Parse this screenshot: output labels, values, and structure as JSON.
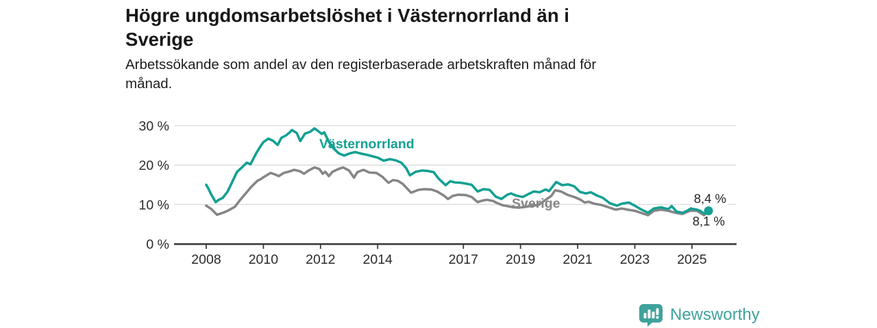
{
  "header": {
    "title_lines": [
      "Högre ungdomsarbetslöshet i Västernorrland än i",
      "Sverige"
    ],
    "subtitle_lines": [
      "Arbetssökande som andel av den registerbaserade arbetskraften månad för",
      "månad."
    ]
  },
  "colors": {
    "vasternorrland": "#14a093",
    "sverige": "#868686",
    "grid": "#d9d9d9",
    "axis": "#3a3a3a",
    "text": "#2b2b2b",
    "brand_teal": "#3fa29c"
  },
  "chart_data": {
    "type": "line",
    "title": "Högre ungdomsarbetslöshet i Västernorrland än i Sverige",
    "subtitle": "Arbetssökande som andel av den registerbaserade arbetskraften månad för månad.",
    "grid": "horizontal",
    "legend_position": "inline-labels",
    "y_axis": {
      "unit": "%",
      "range": [
        0,
        30
      ],
      "ticks": [
        {
          "value": 30,
          "label": "30 %"
        },
        {
          "value": 20,
          "label": "20 %"
        },
        {
          "value": 10,
          "label": "10 %"
        },
        {
          "value": 0,
          "label": "0 %"
        }
      ]
    },
    "x_axis": {
      "range": [
        2008,
        2025.6
      ],
      "ticks": [
        {
          "value": 2008,
          "label": "2008"
        },
        {
          "value": 2010,
          "label": "2010"
        },
        {
          "value": 2012,
          "label": "2012"
        },
        {
          "value": 2014,
          "label": "2014"
        },
        {
          "value": 2017,
          "label": "2017"
        },
        {
          "value": 2019,
          "label": "2019"
        },
        {
          "value": 2021,
          "label": "2021"
        },
        {
          "value": 2023,
          "label": "2023"
        },
        {
          "value": 2025,
          "label": "2025"
        }
      ]
    },
    "series": [
      {
        "name": "Sverige",
        "color": "#868686",
        "end_label": "8,1 %",
        "end_dot": false,
        "points": [
          [
            2008.0,
            9.7
          ],
          [
            2008.17,
            8.9
          ],
          [
            2008.38,
            7.4
          ],
          [
            2008.58,
            7.9
          ],
          [
            2008.75,
            8.4
          ],
          [
            2009.0,
            9.4
          ],
          [
            2009.17,
            11.0
          ],
          [
            2009.38,
            12.8
          ],
          [
            2009.58,
            14.5
          ],
          [
            2009.79,
            16.0
          ],
          [
            2009.92,
            16.5
          ],
          [
            2010.0,
            16.9
          ],
          [
            2010.25,
            18.0
          ],
          [
            2010.42,
            17.6
          ],
          [
            2010.54,
            17.2
          ],
          [
            2010.71,
            18.0
          ],
          [
            2010.92,
            18.4
          ],
          [
            2011.08,
            18.8
          ],
          [
            2011.29,
            18.4
          ],
          [
            2011.42,
            17.8
          ],
          [
            2011.58,
            18.6
          ],
          [
            2011.79,
            19.4
          ],
          [
            2011.96,
            19.0
          ],
          [
            2012.08,
            17.8
          ],
          [
            2012.17,
            18.3
          ],
          [
            2012.29,
            17.2
          ],
          [
            2012.42,
            18.3
          ],
          [
            2012.63,
            19.0
          ],
          [
            2012.79,
            19.4
          ],
          [
            2013.0,
            18.6
          ],
          [
            2013.17,
            16.8
          ],
          [
            2013.29,
            18.2
          ],
          [
            2013.5,
            18.8
          ],
          [
            2013.71,
            18.1
          ],
          [
            2013.96,
            18.0
          ],
          [
            2014.17,
            17.0
          ],
          [
            2014.38,
            15.5
          ],
          [
            2014.54,
            16.2
          ],
          [
            2014.71,
            16.0
          ],
          [
            2014.88,
            15.2
          ],
          [
            2015.17,
            13.0
          ],
          [
            2015.42,
            13.7
          ],
          [
            2015.63,
            13.9
          ],
          [
            2015.88,
            13.8
          ],
          [
            2016.08,
            13.3
          ],
          [
            2016.33,
            12.2
          ],
          [
            2016.46,
            11.4
          ],
          [
            2016.63,
            12.2
          ],
          [
            2016.83,
            12.5
          ],
          [
            2017.08,
            12.4
          ],
          [
            2017.29,
            11.9
          ],
          [
            2017.5,
            10.6
          ],
          [
            2017.67,
            11.0
          ],
          [
            2017.83,
            11.2
          ],
          [
            2018.04,
            10.9
          ],
          [
            2018.17,
            10.4
          ],
          [
            2018.38,
            9.8
          ],
          [
            2018.54,
            9.6
          ],
          [
            2018.75,
            9.3
          ],
          [
            2018.96,
            9.2
          ],
          [
            2019.17,
            9.4
          ],
          [
            2019.42,
            9.7
          ],
          [
            2019.63,
            9.9
          ],
          [
            2019.88,
            11.2
          ],
          [
            2020.08,
            12.2
          ],
          [
            2020.21,
            13.6
          ],
          [
            2020.42,
            13.3
          ],
          [
            2020.63,
            12.5
          ],
          [
            2020.88,
            11.9
          ],
          [
            2021.08,
            11.3
          ],
          [
            2021.25,
            10.5
          ],
          [
            2021.38,
            10.7
          ],
          [
            2021.58,
            10.2
          ],
          [
            2021.83,
            9.9
          ],
          [
            2022.08,
            9.3
          ],
          [
            2022.33,
            8.7
          ],
          [
            2022.54,
            9.0
          ],
          [
            2022.75,
            8.7
          ],
          [
            2023.0,
            8.4
          ],
          [
            2023.21,
            7.9
          ],
          [
            2023.46,
            7.3
          ],
          [
            2023.67,
            8.4
          ],
          [
            2023.92,
            8.7
          ],
          [
            2024.17,
            8.4
          ],
          [
            2024.42,
            7.9
          ],
          [
            2024.67,
            7.6
          ],
          [
            2024.92,
            8.4
          ],
          [
            2025.17,
            8.4
          ],
          [
            2025.42,
            7.3
          ],
          [
            2025.58,
            8.1
          ]
        ]
      },
      {
        "name": "Västernorrland",
        "color": "#14a093",
        "end_label": "8,4 %",
        "end_dot": true,
        "points": [
          [
            2008.0,
            15.0
          ],
          [
            2008.08,
            14.0
          ],
          [
            2008.17,
            12.6
          ],
          [
            2008.33,
            10.6
          ],
          [
            2008.42,
            11.1
          ],
          [
            2008.58,
            11.7
          ],
          [
            2008.75,
            13.3
          ],
          [
            2008.92,
            15.9
          ],
          [
            2009.08,
            18.3
          ],
          [
            2009.25,
            19.4
          ],
          [
            2009.42,
            20.6
          ],
          [
            2009.55,
            20.2
          ],
          [
            2009.75,
            23.0
          ],
          [
            2009.92,
            25.0
          ],
          [
            2010.0,
            25.8
          ],
          [
            2010.17,
            26.7
          ],
          [
            2010.33,
            26.2
          ],
          [
            2010.5,
            25.1
          ],
          [
            2010.63,
            26.9
          ],
          [
            2010.79,
            27.5
          ],
          [
            2010.92,
            28.3
          ],
          [
            2011.0,
            28.9
          ],
          [
            2011.17,
            28.1
          ],
          [
            2011.29,
            26.1
          ],
          [
            2011.46,
            28.0
          ],
          [
            2011.63,
            28.4
          ],
          [
            2011.79,
            29.3
          ],
          [
            2011.92,
            28.6
          ],
          [
            2012.04,
            27.9
          ],
          [
            2012.13,
            28.3
          ],
          [
            2012.29,
            25.9
          ],
          [
            2012.46,
            24.2
          ],
          [
            2012.63,
            23.0
          ],
          [
            2012.83,
            22.4
          ],
          [
            2013.0,
            22.9
          ],
          [
            2013.21,
            23.3
          ],
          [
            2013.42,
            22.9
          ],
          [
            2013.63,
            22.6
          ],
          [
            2013.83,
            22.2
          ],
          [
            2014.0,
            21.9
          ],
          [
            2014.21,
            21.1
          ],
          [
            2014.42,
            21.5
          ],
          [
            2014.63,
            21.2
          ],
          [
            2014.83,
            20.6
          ],
          [
            2015.0,
            19.2
          ],
          [
            2015.13,
            17.4
          ],
          [
            2015.33,
            18.3
          ],
          [
            2015.54,
            18.6
          ],
          [
            2015.75,
            18.5
          ],
          [
            2015.96,
            18.2
          ],
          [
            2016.13,
            16.6
          ],
          [
            2016.38,
            14.9
          ],
          [
            2016.54,
            15.9
          ],
          [
            2016.71,
            15.6
          ],
          [
            2016.92,
            15.5
          ],
          [
            2017.08,
            15.3
          ],
          [
            2017.29,
            15.0
          ],
          [
            2017.5,
            13.3
          ],
          [
            2017.71,
            13.9
          ],
          [
            2017.92,
            13.7
          ],
          [
            2018.13,
            12.0
          ],
          [
            2018.33,
            11.4
          ],
          [
            2018.54,
            12.5
          ],
          [
            2018.67,
            12.8
          ],
          [
            2018.83,
            12.3
          ],
          [
            2019.08,
            11.9
          ],
          [
            2019.29,
            12.7
          ],
          [
            2019.46,
            13.3
          ],
          [
            2019.67,
            13.1
          ],
          [
            2019.88,
            13.8
          ],
          [
            2020.0,
            13.4
          ],
          [
            2020.25,
            15.7
          ],
          [
            2020.46,
            14.9
          ],
          [
            2020.67,
            15.1
          ],
          [
            2020.88,
            14.6
          ],
          [
            2021.08,
            13.2
          ],
          [
            2021.29,
            12.8
          ],
          [
            2021.46,
            13.1
          ],
          [
            2021.67,
            12.3
          ],
          [
            2021.88,
            11.7
          ],
          [
            2022.13,
            10.3
          ],
          [
            2022.38,
            9.7
          ],
          [
            2022.54,
            10.2
          ],
          [
            2022.79,
            10.5
          ],
          [
            2023.0,
            9.7
          ],
          [
            2023.21,
            8.8
          ],
          [
            2023.46,
            7.9
          ],
          [
            2023.67,
            9.0
          ],
          [
            2023.92,
            9.3
          ],
          [
            2024.17,
            8.8
          ],
          [
            2024.29,
            9.6
          ],
          [
            2024.46,
            8.2
          ],
          [
            2024.67,
            7.9
          ],
          [
            2024.83,
            8.4
          ],
          [
            2024.96,
            9.0
          ],
          [
            2025.17,
            8.7
          ],
          [
            2025.29,
            8.4
          ],
          [
            2025.42,
            7.7
          ],
          [
            2025.58,
            8.4
          ]
        ]
      }
    ]
  },
  "footer": {
    "brand": "Newsworthy",
    "logo_icon": "bar-chart-speech-bubble-icon"
  }
}
